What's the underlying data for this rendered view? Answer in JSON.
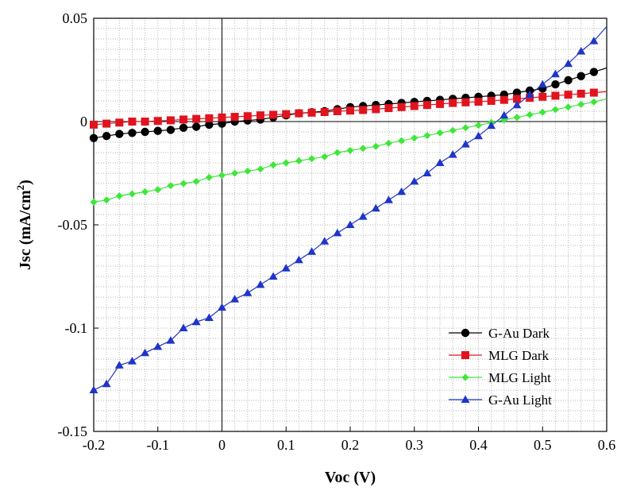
{
  "chart_data": {
    "type": "scatter",
    "xlabel": "Voc (V)",
    "ylabel_main": "Jsc (mA/cm",
    "ylabel_sup": "2",
    "ylabel_tail": ")",
    "xlim": [
      -0.2,
      0.6
    ],
    "ylim": [
      -0.15,
      0.05
    ],
    "xticks": [
      -0.2,
      -0.1,
      0,
      0.1,
      0.2,
      0.3,
      0.4,
      0.5,
      0.6
    ],
    "xtick_labels": [
      "-0.2",
      "-0.1",
      "0",
      "0.1",
      "0.2",
      "0.3",
      "0.4",
      "0.5",
      "0.6"
    ],
    "yticks": [
      0.05,
      0,
      -0.05,
      -0.1,
      -0.15
    ],
    "ytick_labels": [
      "0.05",
      "0",
      "-0.05",
      "-0.1",
      "-0.15"
    ],
    "grid": true,
    "legend_position": "bottom-right",
    "series": [
      {
        "name": "G-Au Dark",
        "color": "#000000",
        "marker": "circle",
        "x": [
          -0.2,
          -0.18,
          -0.16,
          -0.14,
          -0.12,
          -0.1,
          -0.08,
          -0.06,
          -0.04,
          -0.02,
          0,
          0.02,
          0.04,
          0.06,
          0.08,
          0.1,
          0.12,
          0.14,
          0.16,
          0.18,
          0.2,
          0.22,
          0.24,
          0.26,
          0.28,
          0.3,
          0.32,
          0.34,
          0.36,
          0.38,
          0.4,
          0.42,
          0.44,
          0.46,
          0.48,
          0.5,
          0.52,
          0.54,
          0.56,
          0.58,
          0.6
        ],
        "y": [
          -0.008,
          -0.007,
          -0.006,
          -0.0055,
          -0.005,
          -0.0045,
          -0.004,
          -0.003,
          -0.0025,
          -0.0015,
          -0.001,
          0.0,
          0.0005,
          0.001,
          0.002,
          0.003,
          0.004,
          0.0045,
          0.005,
          0.006,
          0.007,
          0.0075,
          0.008,
          0.0085,
          0.009,
          0.0095,
          0.01,
          0.0105,
          0.011,
          0.0115,
          0.012,
          0.0125,
          0.013,
          0.014,
          0.015,
          0.016,
          0.018,
          0.02,
          0.022,
          0.024,
          0.026
        ]
      },
      {
        "name": "MLG Dark",
        "color": "#e0141e",
        "marker": "square",
        "x": [
          -0.2,
          -0.18,
          -0.16,
          -0.14,
          -0.12,
          -0.1,
          -0.08,
          -0.06,
          -0.04,
          -0.02,
          0,
          0.02,
          0.04,
          0.06,
          0.08,
          0.1,
          0.12,
          0.14,
          0.16,
          0.18,
          0.2,
          0.22,
          0.24,
          0.26,
          0.28,
          0.3,
          0.32,
          0.34,
          0.36,
          0.38,
          0.4,
          0.42,
          0.44,
          0.46,
          0.48,
          0.5,
          0.52,
          0.54,
          0.56,
          0.58,
          0.6
        ],
        "y": [
          -0.0015,
          -0.001,
          -0.0005,
          0.0,
          0.0,
          0.0003,
          0.0006,
          0.001,
          0.0013,
          0.0016,
          0.002,
          0.0023,
          0.0026,
          0.003,
          0.0033,
          0.0036,
          0.004,
          0.0043,
          0.0046,
          0.005,
          0.0053,
          0.0056,
          0.006,
          0.0065,
          0.007,
          0.0075,
          0.008,
          0.0085,
          0.009,
          0.0093,
          0.0096,
          0.01,
          0.0105,
          0.011,
          0.0115,
          0.012,
          0.0125,
          0.013,
          0.0135,
          0.014,
          0.0145
        ]
      },
      {
        "name": "MLG Light",
        "color": "#3ee63a",
        "marker": "diamond",
        "x": [
          -0.2,
          -0.18,
          -0.16,
          -0.14,
          -0.12,
          -0.1,
          -0.08,
          -0.06,
          -0.04,
          -0.02,
          0,
          0.02,
          0.04,
          0.06,
          0.08,
          0.1,
          0.12,
          0.14,
          0.16,
          0.18,
          0.2,
          0.22,
          0.24,
          0.26,
          0.28,
          0.3,
          0.32,
          0.34,
          0.36,
          0.38,
          0.4,
          0.42,
          0.44,
          0.46,
          0.48,
          0.5,
          0.52,
          0.54,
          0.56,
          0.58,
          0.6
        ],
        "y": [
          -0.039,
          -0.038,
          -0.036,
          -0.035,
          -0.034,
          -0.033,
          -0.031,
          -0.03,
          -0.029,
          -0.027,
          -0.026,
          -0.025,
          -0.024,
          -0.023,
          -0.021,
          -0.02,
          -0.019,
          -0.018,
          -0.017,
          -0.015,
          -0.014,
          -0.013,
          -0.012,
          -0.0105,
          -0.0093,
          -0.008,
          -0.0068,
          -0.0055,
          -0.0043,
          -0.003,
          -0.0018,
          -0.0005,
          0.0008,
          0.002,
          0.0033,
          0.0045,
          0.0058,
          0.007,
          0.0083,
          0.0095,
          0.011
        ]
      },
      {
        "name": "G-Au Light",
        "color": "#1f35c8",
        "marker": "triangle",
        "x": [
          -0.2,
          -0.18,
          -0.16,
          -0.14,
          -0.12,
          -0.1,
          -0.08,
          -0.06,
          -0.04,
          -0.02,
          0,
          0.02,
          0.04,
          0.06,
          0.08,
          0.1,
          0.12,
          0.14,
          0.16,
          0.18,
          0.2,
          0.22,
          0.24,
          0.26,
          0.28,
          0.3,
          0.32,
          0.34,
          0.36,
          0.38,
          0.4,
          0.42,
          0.44,
          0.46,
          0.48,
          0.5,
          0.52,
          0.54,
          0.56,
          0.58,
          0.6
        ],
        "y": [
          -0.13,
          -0.127,
          -0.118,
          -0.116,
          -0.112,
          -0.109,
          -0.106,
          -0.1,
          -0.097,
          -0.095,
          -0.09,
          -0.086,
          -0.083,
          -0.079,
          -0.075,
          -0.071,
          -0.067,
          -0.063,
          -0.058,
          -0.054,
          -0.05,
          -0.046,
          -0.042,
          -0.038,
          -0.034,
          -0.029,
          -0.025,
          -0.02,
          -0.016,
          -0.011,
          -0.007,
          -0.002,
          0.003,
          0.008,
          0.013,
          0.018,
          0.023,
          0.028,
          0.034,
          0.039,
          0.046
        ]
      }
    ]
  }
}
